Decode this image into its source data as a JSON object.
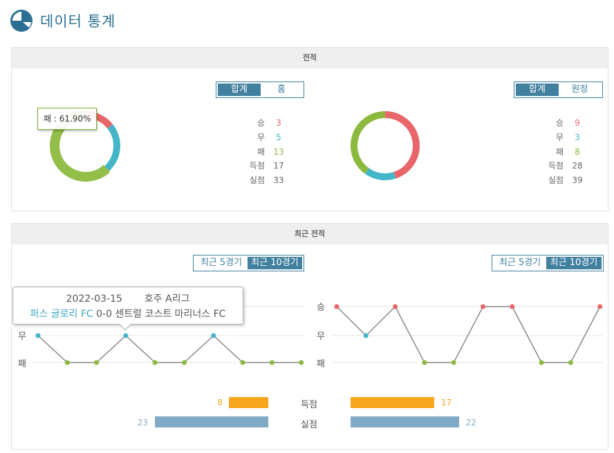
{
  "header": {
    "title": "데이터 통계",
    "icon": "pie-chart-icon"
  },
  "colors": {
    "win": "#e8666a",
    "draw": "#44b6c8",
    "loss": "#8cba3f",
    "accent": "#41809f",
    "goals_for": "#f7a61e",
    "goals_against": "#7fa9c4"
  },
  "record_panel": {
    "title": "전적",
    "left": {
      "tabs": [
        "합계",
        "홈"
      ],
      "active_tab": "합계",
      "stats": [
        {
          "label": "승",
          "value": "3"
        },
        {
          "label": "무",
          "value": "5"
        },
        {
          "label": "패",
          "value": "13"
        },
        {
          "label": "득점",
          "value": "17"
        },
        {
          "label": "실점",
          "value": "33"
        }
      ],
      "tooltip": "패 : 61.90%"
    },
    "right": {
      "tabs": [
        "합계",
        "원정"
      ],
      "active_tab": "합계",
      "stats": [
        {
          "label": "승",
          "value": "9"
        },
        {
          "label": "무",
          "value": "3"
        },
        {
          "label": "패",
          "value": "8"
        },
        {
          "label": "득점",
          "value": "28"
        },
        {
          "label": "실점",
          "value": "39"
        }
      ]
    }
  },
  "recent_panel": {
    "title": "최근 전적",
    "left": {
      "tabs": [
        "최근 5경기",
        "최근 10경기"
      ],
      "active_tab": "최근 10경기"
    },
    "right": {
      "tabs": [
        "최근 5경기",
        "최근 10경기"
      ],
      "active_tab": "최근 10경기"
    },
    "tooltip": {
      "date": "2022-03-15",
      "league": "호주 A리그",
      "home": "퍼스 글로리 FC",
      "score": "0-0",
      "away": "센트럴 코스트 마리너스 FC"
    },
    "goals": {
      "label": "득점",
      "left": "8",
      "right": "17"
    },
    "conceded": {
      "label": "실점",
      "left": "23",
      "right": "22"
    }
  },
  "chart_data": [
    {
      "type": "pie",
      "title": "",
      "categories": [
        "승",
        "무",
        "패"
      ],
      "values": [
        3,
        5,
        13
      ]
    },
    {
      "type": "pie",
      "title": "",
      "categories": [
        "승",
        "무",
        "패"
      ],
      "values": [
        9,
        3,
        8
      ]
    },
    {
      "type": "line",
      "title": "",
      "y_categories": [
        "승",
        "무",
        "패"
      ],
      "series": [
        {
          "values": [
            "무",
            "패",
            "패",
            "무",
            "패",
            "패",
            "무",
            "패",
            "패",
            "패"
          ]
        }
      ]
    },
    {
      "type": "line",
      "title": "",
      "y_categories": [
        "승",
        "무",
        "패"
      ],
      "series": [
        {
          "values": [
            "승",
            "무",
            "승",
            "패",
            "패",
            "승",
            "승",
            "패",
            "패",
            "승"
          ]
        }
      ]
    },
    {
      "type": "bar",
      "title": "",
      "categories": [
        "득점",
        "실점"
      ],
      "series": [
        {
          "values": [
            8,
            23
          ]
        },
        {
          "values": [
            17,
            22
          ]
        }
      ]
    }
  ]
}
